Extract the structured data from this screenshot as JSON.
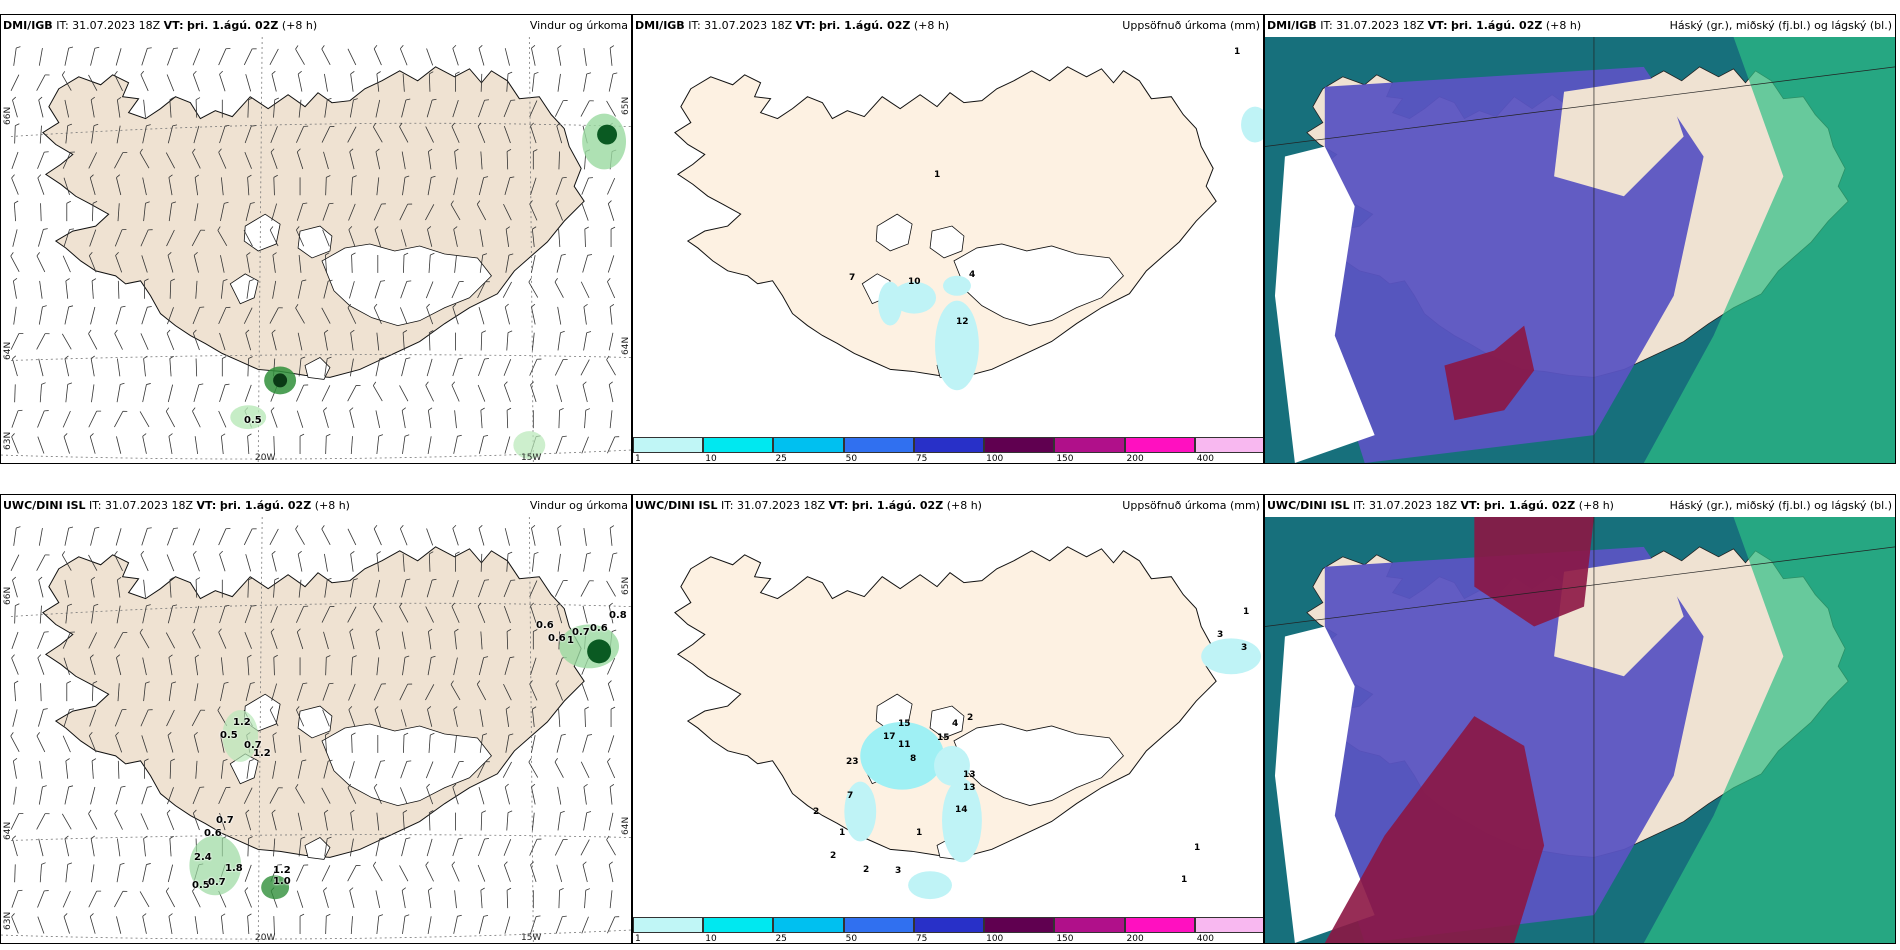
{
  "panels": {
    "p1": {
      "source": "DMI/IGB",
      "it": "IT: 31.07.2023 18Z",
      "vt_label": "VT:",
      "vt_value": "þri. 1.ágú. 02Z",
      "lead": "(+8 h)",
      "field": "Vindur og úrkoma",
      "lon_labels": [
        "20W",
        "15W"
      ],
      "lat_labels": [
        "66N",
        "64N",
        "63N",
        "65N",
        "64N"
      ],
      "values": [
        "0.5"
      ]
    },
    "p2": {
      "source": "DMI/IGB",
      "it": "IT: 31.07.2023 18Z",
      "vt_label": "VT:",
      "vt_value": "þri. 1.ágú. 02Z",
      "lead": "(+8 h)",
      "field": "Uppsöfnuð úrkoma (mm)",
      "values": [
        "1",
        "1",
        "7",
        "10",
        "4",
        "12"
      ]
    },
    "p3": {
      "source": "DMI/IGB",
      "it": "IT: 31.07.2023 18Z",
      "vt_label": "VT:",
      "vt_value": "þri. 1.ágú. 02Z",
      "lead": "(+8 h)",
      "field": "Háský (gr.), miðský (fj.bl.) og lágský (bl.)"
    },
    "p4": {
      "source": "UWC/DINI ISL",
      "it": "IT: 31.07.2023 18Z",
      "vt_label": "VT:",
      "vt_value": "þri. 1.ágú. 02Z",
      "lead": "(+8 h)",
      "field": "Vindur og úrkoma",
      "lon_labels": [
        "20W",
        "15W"
      ],
      "lat_labels": [
        "66N",
        "64N",
        "63N",
        "65N",
        "64N"
      ],
      "values": [
        "0.6",
        "0.6",
        "1",
        "0.7",
        "0.6",
        "0.8",
        "1.2",
        "0.5",
        "0.7",
        "1.2",
        "0.7",
        "0.6",
        "2.4",
        "1.8",
        "0.5",
        "0.7",
        "1.2",
        "1.0"
      ]
    },
    "p5": {
      "source": "UWC/DINI ISL",
      "it": "IT: 31.07.2023 18Z",
      "vt_label": "VT:",
      "vt_value": "þri. 1.ágú. 02Z",
      "lead": "(+8 h)",
      "field": "Uppsöfnuð úrkoma (mm)",
      "values": [
        "1",
        "3",
        "3",
        "2",
        "4",
        "15",
        "17",
        "11",
        "8",
        "15",
        "23",
        "13",
        "13",
        "7",
        "14",
        "2",
        "1",
        "1",
        "2",
        "2",
        "3",
        "1",
        "1"
      ]
    },
    "p6": {
      "source": "UWC/DINI ISL",
      "it": "IT: 31.07.2023 18Z",
      "vt_label": "VT:",
      "vt_value": "þri. 1.ágú. 02Z",
      "lead": "(+8 h)",
      "field": "Háský (gr.), miðský (fj.bl.) og lágský (bl.)"
    }
  },
  "colorbar": {
    "labels": [
      "1",
      "10",
      "25",
      "50",
      "75",
      "100",
      "150",
      "200",
      "400"
    ],
    "colors": [
      "#c0f6f6",
      "#00e8f0",
      "#00c0f0",
      "#3070f0",
      "#2830c8",
      "#600050",
      "#b0108a",
      "#ff10c0",
      "#f8b8f0"
    ]
  },
  "colors": {
    "land": "#efe2d2",
    "land_precip": "#fdf1e2",
    "high_cloud": "#17707c",
    "mid_cloud": "#5a54c2",
    "low_cloud": "#8c1644",
    "green": "#2ebf84"
  }
}
